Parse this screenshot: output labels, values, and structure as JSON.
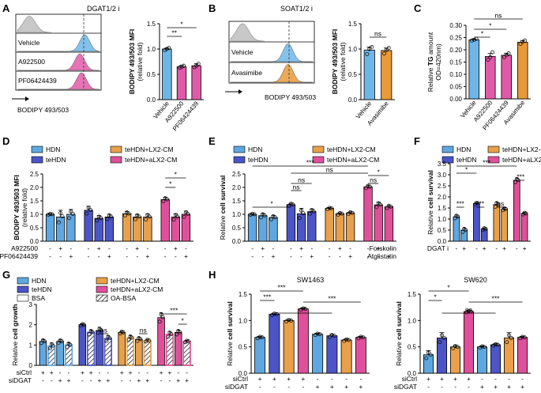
{
  "colors": {
    "HDN": "#5fa7e0",
    "teHDN": "#4b55c8",
    "teHDN_LX2": "#e8a04a",
    "teHDN_aLX2": "#e0509a",
    "gray": "#c8c8c8",
    "blue": "#6fb6e8",
    "pink": "#e05aa8",
    "orange": "#e89a3a",
    "dashed": "#333333"
  },
  "legend": {
    "HDN": "HDN",
    "teHDN": "teHDN",
    "LX2": "teHDN+LX2-CM",
    "aLX2": "teHDN+aLX2-CM",
    "BSA": "BSA",
    "OABSA": "OA-BSA"
  },
  "panelA": {
    "letter": "A",
    "histogram": {
      "title": "DGAT1/2 i",
      "rows": [
        "Vehicle",
        "A922500",
        "PF06424439"
      ],
      "xlabel": "BODIPY 493/503"
    },
    "chart_data": {
      "type": "bar",
      "categories": [
        "Vehicle",
        "A922500",
        "PF06424439"
      ],
      "values": [
        1.0,
        0.65,
        0.67
      ],
      "errors": [
        0.02,
        0.03,
        0.04
      ],
      "points": [
        [
          0.98,
          1.0,
          1.02
        ],
        [
          0.63,
          0.65,
          0.67
        ],
        [
          0.64,
          0.67,
          0.71
        ]
      ],
      "ylabel": "BODIPY 493/503 MFI",
      "ylabel2": "(relative fold)",
      "ylim": [
        0,
        1.5
      ],
      "yticks": [
        "0.0",
        "0.5",
        "1.0",
        "1.5"
      ],
      "significance": [
        {
          "from": 0,
          "to": 1,
          "label": "**"
        },
        {
          "from": 0,
          "to": 2,
          "label": "*"
        }
      ]
    }
  },
  "panelB": {
    "letter": "B",
    "histogram": {
      "title": "SOAT1/2 i",
      "rows": [
        "Vehicle",
        "Avasimibe"
      ],
      "xlabel": "BODIPY 493/503"
    },
    "chart_data": {
      "type": "bar",
      "categories": [
        "Vehicle",
        "Avasimibe"
      ],
      "values": [
        0.98,
        0.97
      ],
      "errors": [
        0.06,
        0.05
      ],
      "points": [
        [
          0.9,
          1.0,
          1.04
        ],
        [
          0.91,
          0.98,
          1.02
        ]
      ],
      "ylabel": "BODIPY 493/503 MFI",
      "ylabel2": "(relative fold)",
      "ylim": [
        0,
        1.5
      ],
      "yticks": [
        "0.0",
        "0.5",
        "1.0",
        "1.5"
      ],
      "significance": [
        {
          "from": 0,
          "to": 1,
          "label": "ns"
        }
      ]
    }
  },
  "panelC": {
    "letter": "C",
    "chart_data": {
      "type": "bar",
      "categories": [
        "Vehicle",
        "A922500",
        "PF06424439",
        "Avasimibe"
      ],
      "values": [
        0.241,
        0.173,
        0.178,
        0.231
      ],
      "errors": [
        0.004,
        0.012,
        0.008,
        0.007
      ],
      "points": [
        [
          0.238,
          0.241,
          0.245
        ],
        [
          0.16,
          0.17,
          0.19
        ],
        [
          0.17,
          0.178,
          0.186
        ],
        [
          0.224,
          0.232,
          0.238
        ]
      ],
      "ylabel": "Relative TG amount",
      "ylabel_bold": "TG",
      "ylabel2": "OD=420nm)",
      "ylim": [
        0.0,
        0.3
      ],
      "yticks": [
        "0.00",
        "0.05",
        "0.10",
        "0.15",
        "0.20",
        "0.25",
        "0.30"
      ],
      "significance": [
        {
          "from": 0,
          "to": 1,
          "label": "*"
        },
        {
          "from": 0,
          "to": 2,
          "label": "*"
        },
        {
          "from": 0,
          "to": 3,
          "label": "ns"
        }
      ]
    }
  },
  "panelD": {
    "letter": "D",
    "chart_data": {
      "type": "bar",
      "groups": [
        "HDN",
        "teHDN",
        "teHDN+LX2-CM",
        "teHDN+aLX2-CM"
      ],
      "values": [
        [
          1.0,
          0.9,
          1.0
        ],
        [
          1.15,
          0.85,
          0.9
        ],
        [
          1.02,
          0.9,
          0.9
        ],
        [
          1.55,
          0.9,
          1.0
        ]
      ],
      "errors": [
        [
          0.02,
          0.25,
          0.18
        ],
        [
          0.15,
          0.1,
          0.1
        ],
        [
          0.08,
          0.1,
          0.12
        ],
        [
          0.08,
          0.12,
          0.12
        ]
      ],
      "ylabel": "BODIPY 493/503 MFI",
      "ylabel2": "(relative fold)",
      "ylim": [
        0,
        2.5
      ],
      "yticks": [
        "0.0",
        "0.5",
        "1.0",
        "1.5",
        "2.0",
        "2.5"
      ],
      "rows": [
        {
          "label": "A922500",
          "signs": [
            "-",
            "+",
            "-",
            "-",
            "+",
            "-",
            "-",
            "+",
            "-",
            "-",
            "+",
            "-"
          ]
        },
        {
          "label": "PF06424439",
          "signs": [
            "-",
            "-",
            "+",
            "-",
            "-",
            "+",
            "-",
            "-",
            "+",
            "-",
            "-",
            "+"
          ]
        }
      ],
      "significance": [
        {
          "label": "*",
          "bars": [
            9,
            11
          ]
        },
        {
          "label": "*",
          "bars": [
            9,
            10
          ]
        }
      ]
    }
  },
  "panelE": {
    "letter": "E",
    "chart_data": {
      "type": "bar",
      "groups": [
        "HDN",
        "teHDN",
        "teHDN+LX2-CM",
        "teHDN+aLX2-CM"
      ],
      "values": [
        [
          1.0,
          0.95,
          0.88
        ],
        [
          1.36,
          1.02,
          1.1
        ],
        [
          1.22,
          1.02,
          1.05
        ],
        [
          2.02,
          1.35,
          1.28
        ]
      ],
      "errors": [
        [
          0.02,
          0.08,
          0.08
        ],
        [
          0.05,
          0.2,
          0.1
        ],
        [
          0.03,
          0.04,
          0.04
        ],
        [
          0.06,
          0.1,
          0.06
        ]
      ],
      "ylabel": "Relative cell survival",
      "ylabel_bold": "cell survival",
      "ylim": [
        0.0,
        2.5
      ],
      "yticks": [
        "0.0",
        "0.5",
        "1.0",
        "1.5",
        "2.0",
        "2.5"
      ],
      "rows": [
        {
          "label": "Forskolin",
          "signs": [
            "-",
            "+",
            "-",
            "-",
            "+",
            "-",
            "-",
            "+",
            "-",
            "-",
            "+",
            "-"
          ]
        },
        {
          "label": "Atglistatin",
          "signs": [
            "-",
            "-",
            "+",
            "-",
            "-",
            "+",
            "-",
            "-",
            "+",
            "-",
            "-",
            "+"
          ]
        }
      ],
      "significance": [
        {
          "label": "***",
          "bars": [
            0,
            9
          ]
        },
        {
          "label": "ns",
          "bars": [
            3,
            9
          ]
        },
        {
          "label": "*",
          "bars": [
            9,
            11
          ]
        },
        {
          "label": "ns",
          "bars": [
            9,
            10
          ]
        },
        {
          "label": "ns",
          "bars": [
            3,
            5
          ]
        },
        {
          "label": "ns",
          "bars": [
            3,
            4
          ]
        },
        {
          "label": "*",
          "bars": [
            0,
            3
          ]
        }
      ]
    }
  },
  "panelF": {
    "letter": "F",
    "chart_data": {
      "type": "bar",
      "groups": [
        "HDN",
        "teHDN",
        "teHDN+LX2-CM",
        "teHDN+aLX2-CM"
      ],
      "values": [
        [
          1.1,
          0.5
        ],
        [
          1.7,
          0.55
        ],
        [
          1.65,
          1.45
        ],
        [
          2.75,
          1.25
        ]
      ],
      "errors": [
        [
          0.08,
          0.1
        ],
        [
          0.05,
          0.05
        ],
        [
          0.12,
          0.06
        ],
        [
          0.1,
          0.05
        ]
      ],
      "ylabel": "Relative cell survival",
      "ylabel_bold": "cell survival",
      "ylim": [
        0,
        3.5
      ],
      "yticks": [
        "0.0",
        "0.5",
        "1.0",
        "1.5",
        "2.0",
        "2.5",
        "3.0",
        "3.5"
      ],
      "rows": [
        {
          "label": "DGAT i",
          "signs": [
            "-",
            "+",
            "-",
            "+",
            "-",
            "+",
            "-",
            "+"
          ]
        }
      ],
      "significance": [
        {
          "label": "***",
          "bars": [
            0,
            6
          ]
        },
        {
          "label": "*",
          "bars": [
            0,
            2
          ]
        },
        {
          "label": "***",
          "bars": [
            6,
            7
          ]
        },
        {
          "label": "***",
          "bars": [
            0,
            1
          ]
        },
        {
          "label": "***",
          "bars": [
            2,
            3
          ]
        },
        {
          "label": "ns",
          "bars": [
            4,
            5
          ]
        }
      ]
    }
  },
  "panelG": {
    "letter": "G",
    "chart_data": {
      "type": "bar",
      "groups": [
        "HDN",
        "teHDN",
        "teHDN+LX2-CM",
        "teHDN+aLX2-CM"
      ],
      "values": [
        [
          1.18,
          0.95,
          1.18,
          1.0
        ],
        [
          2.0,
          1.62,
          1.72,
          1.32
        ],
        [
          1.62,
          1.35,
          1.28,
          1.22
        ],
        [
          2.35,
          1.52,
          1.62,
          1.18
        ]
      ],
      "errors": [
        [
          0.1,
          0.15,
          0.08,
          0.12
        ],
        [
          0.05,
          0.12,
          0.15,
          0.15
        ],
        [
          0.06,
          0.12,
          0.1,
          0.06
        ],
        [
          0.25,
          0.15,
          0.12,
          0.05
        ]
      ],
      "ylabel": "Relative cell growth",
      "ylabel_bold": "cell growth",
      "ylim": [
        0,
        3
      ],
      "yticks": [
        "0",
        "1",
        "2",
        "3"
      ],
      "hatched": [
        false,
        true,
        false,
        true
      ],
      "rows": [
        {
          "label": "siCtrl",
          "signs": [
            "+",
            "+",
            "-",
            "-",
            "+",
            "+",
            "-",
            "-",
            "+",
            "+",
            "-",
            "-",
            "+",
            "+",
            "-",
            "-"
          ]
        },
        {
          "label": "siDGAT",
          "signs": [
            "-",
            "-",
            "+",
            "+",
            "-",
            "-",
            "+",
            "+",
            "-",
            "-",
            "+",
            "+",
            "-",
            "-",
            "+",
            "+"
          ]
        }
      ],
      "significance": [
        {
          "label": "***",
          "bars": [
            12,
            15
          ]
        },
        {
          "label": "*",
          "bars": [
            14,
            15
          ]
        },
        {
          "label": "ns",
          "bars": [
            6,
            7
          ]
        },
        {
          "label": "ns",
          "bars": [
            10,
            11
          ]
        }
      ]
    }
  },
  "panelH": {
    "letter": "H",
    "charts": [
      {
        "type": "bar",
        "title": "SW1463",
        "values": [
          0.68,
          1.12,
          1.0,
          1.22,
          0.74,
          0.71,
          0.63,
          0.68
        ],
        "errors": [
          0.02,
          0.02,
          0.02,
          0.02,
          0.02,
          0.03,
          0.02,
          0.02
        ],
        "colors": [
          "HDN",
          "teHDN",
          "teHDN_LX2",
          "teHDN_aLX2",
          "HDN",
          "teHDN",
          "teHDN_LX2",
          "teHDN_aLX2"
        ],
        "ylabel": "Relative cell survival",
        "ylabel_bold": "cell survival",
        "ylim": [
          0,
          1.5
        ],
        "yticks": [
          "0.0",
          "0.5",
          "1.0",
          "1.5"
        ],
        "rows": [
          {
            "label": "siCtrl",
            "signs": [
              "+",
              "+",
              "+",
              "+",
              "-",
              "-",
              "-",
              "-"
            ]
          },
          {
            "label": "siDGAT",
            "signs": [
              "-",
              "-",
              "-",
              "-",
              "+",
              "+",
              "+",
              "+"
            ]
          }
        ],
        "significance": [
          {
            "label": "***",
            "bars": [
              0,
              3
            ]
          },
          {
            "label": "***",
            "bars": [
              0,
              1
            ]
          },
          {
            "label": "***",
            "bars": [
              3,
              7
            ]
          },
          {
            "label": "**",
            "bars": [
              1,
              5
            ]
          }
        ]
      },
      {
        "type": "bar",
        "title": "SW620",
        "values": [
          0.35,
          0.67,
          0.5,
          1.17,
          0.5,
          0.54,
          0.67,
          0.68
        ],
        "errors": [
          0.08,
          0.1,
          0.03,
          0.02,
          0.02,
          0.02,
          0.1,
          0.02
        ],
        "colors": [
          "HDN",
          "teHDN",
          "teHDN_LX2",
          "teHDN_aLX2",
          "HDN",
          "teHDN",
          "teHDN_LX2",
          "teHDN_aLX2"
        ],
        "ylabel": "Relative cell survival",
        "ylabel_bold": "cell survival",
        "ylim": [
          0,
          1.5
        ],
        "yticks": [
          "0.0",
          "0.5",
          "1.0",
          "1.5"
        ],
        "rows": [
          {
            "label": "siCtrl",
            "signs": [
              "+",
              "+",
              "+",
              "+",
              "-",
              "-",
              "-",
              "-"
            ]
          },
          {
            "label": "siDGAT",
            "signs": [
              "-",
              "-",
              "-",
              "-",
              "+",
              "+",
              "+",
              "+"
            ]
          }
        ],
        "significance": [
          {
            "label": "*",
            "bars": [
              0,
              3
            ]
          },
          {
            "label": "*",
            "bars": [
              0,
              1
            ]
          },
          {
            "label": "***",
            "bars": [
              3,
              7
            ]
          },
          {
            "label": "ns",
            "bars": [
              1,
              5
            ]
          }
        ]
      }
    ]
  }
}
